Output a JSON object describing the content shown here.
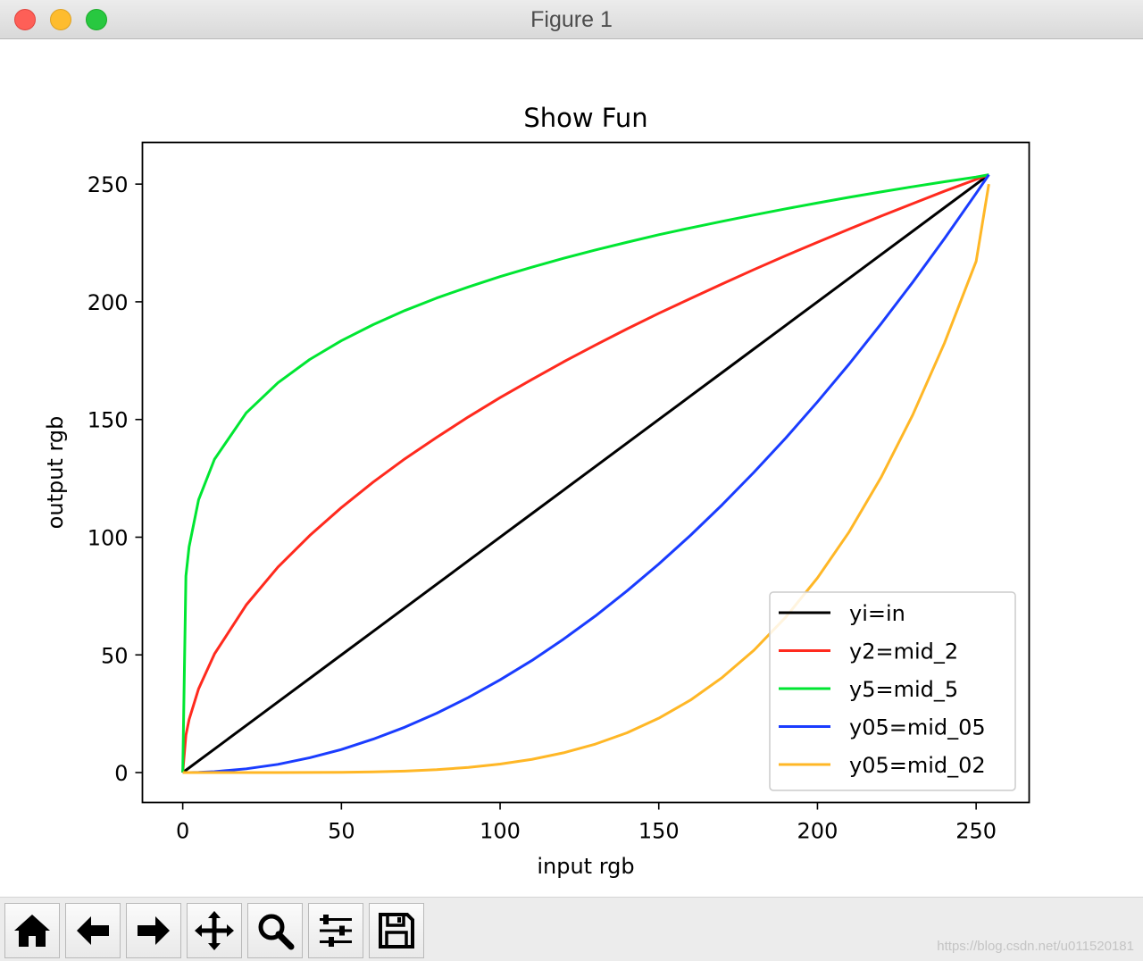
{
  "window": {
    "title": "Figure 1"
  },
  "toolbar": {
    "buttons": [
      {
        "icon": "home-icon"
      },
      {
        "icon": "back-arrow-icon"
      },
      {
        "icon": "forward-arrow-icon"
      },
      {
        "icon": "pan-icon"
      },
      {
        "icon": "zoom-icon"
      },
      {
        "icon": "sliders-icon"
      },
      {
        "icon": "save-icon"
      }
    ]
  },
  "watermark": "https://blog.csdn.net/u011520181",
  "chart_data": {
    "type": "line",
    "title": "Show Fun",
    "xlabel": "input rgb",
    "ylabel": "output rgb",
    "xlim": [
      -12.7,
      266.7
    ],
    "ylim": [
      -12.7,
      267.7
    ],
    "xticks": [
      "0",
      "50",
      "100",
      "150",
      "200",
      "250"
    ],
    "yticks": [
      "0",
      "50",
      "100",
      "150",
      "200",
      "250"
    ],
    "grid": false,
    "legend_position": "lower right",
    "x": [
      0,
      1,
      2,
      5,
      10,
      20,
      30,
      40,
      50,
      60,
      70,
      80,
      90,
      100,
      110,
      120,
      130,
      140,
      150,
      160,
      170,
      180,
      190,
      200,
      210,
      220,
      230,
      240,
      250,
      254
    ],
    "series": [
      {
        "name": "yi=in",
        "color": "#000000",
        "values": [
          0,
          1,
          2,
          5,
          10,
          20,
          30,
          40,
          50,
          60,
          70,
          80,
          90,
          100,
          110,
          120,
          130,
          140,
          150,
          160,
          170,
          180,
          190,
          200,
          210,
          220,
          230,
          240,
          250,
          254
        ]
      },
      {
        "name": "y2=mid_2",
        "color": "#ff2a1e",
        "values": [
          0,
          15.9,
          22.5,
          35.6,
          50.4,
          71.2,
          87.3,
          100.7,
          112.6,
          123.4,
          133.3,
          142.4,
          151.1,
          159.3,
          167.0,
          174.5,
          181.6,
          188.5,
          195.1,
          201.4,
          207.6,
          213.7,
          219.6,
          225.3,
          230.9,
          236.4,
          241.7,
          247.0,
          252.0,
          254.0
        ]
      },
      {
        "name": "y5=mid_5",
        "color": "#00e632",
        "values": [
          0,
          83.5,
          95.9,
          115.9,
          133.1,
          152.8,
          165.6,
          175.5,
          183.5,
          190.3,
          196.3,
          201.6,
          206.3,
          210.7,
          214.7,
          218.5,
          222.0,
          225.3,
          228.5,
          231.4,
          234.2,
          236.9,
          239.5,
          242.0,
          244.4,
          246.7,
          248.9,
          251.0,
          253.0,
          254.0
        ]
      },
      {
        "name": "y05=mid_05",
        "color": "#1a3cff",
        "values": [
          0,
          0.004,
          0.016,
          0.1,
          0.4,
          1.6,
          3.5,
          6.3,
          9.8,
          14.2,
          19.3,
          25.2,
          31.9,
          39.4,
          47.6,
          56.7,
          66.5,
          77.2,
          88.6,
          100.8,
          113.8,
          127.6,
          142.1,
          157.5,
          173.6,
          190.6,
          208.3,
          226.8,
          246.1,
          254.0
        ]
      },
      {
        "name": "y05=mid_02",
        "color": "#ffb726",
        "values": [
          0,
          0,
          0,
          0,
          0,
          0,
          0.01,
          0.04,
          0.12,
          0.3,
          0.65,
          1.25,
          2.2,
          3.6,
          5.6,
          8.4,
          12.1,
          16.9,
          23.1,
          30.8,
          40.4,
          52.0,
          66.0,
          82.7,
          102.3,
          125.3,
          151.9,
          182.4,
          217.2,
          250.0
        ]
      }
    ]
  }
}
